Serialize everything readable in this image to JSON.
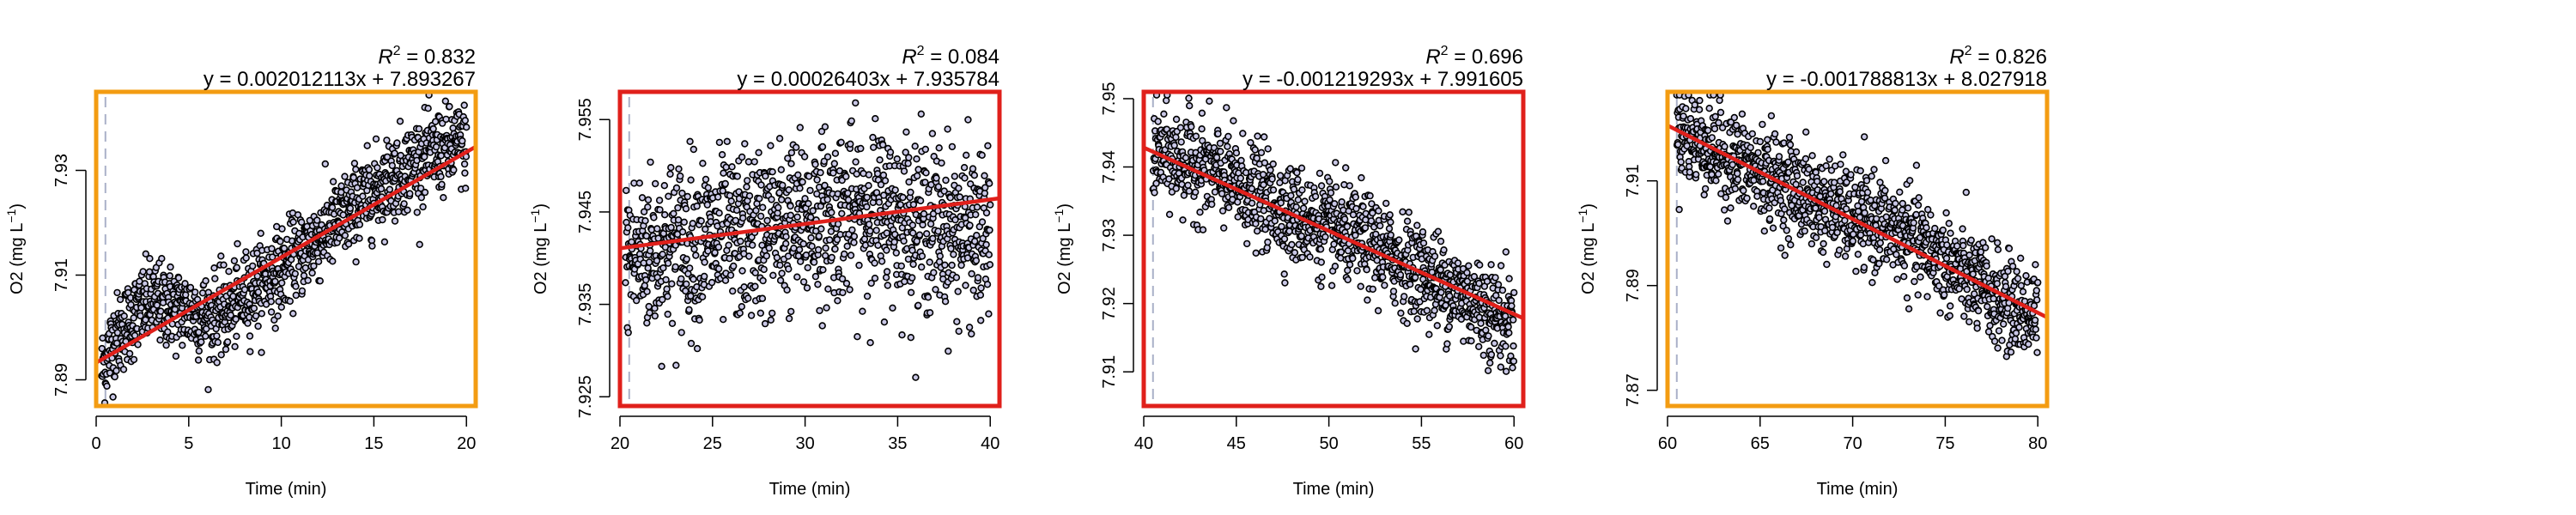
{
  "chart_data": [
    {
      "type": "scatter",
      "title": "",
      "xlabel": "Time (min)",
      "ylabel": "O2 (mg L-1)",
      "xlim": [
        0,
        20.5
      ],
      "ylim": [
        7.885,
        7.945
      ],
      "xticks": [
        "0",
        "5",
        "10",
        "15",
        "20"
      ],
      "xtick_values": [
        0,
        5,
        10,
        15,
        20
      ],
      "yticks": [
        "7.89",
        "7.91",
        "7.93"
      ],
      "ytick_values": [
        7.89,
        7.91,
        7.93
      ],
      "r2_label": "= 0.832",
      "equation": "y = 0.002012113x + 7.893267",
      "slope": 0.002012113,
      "intercept": 7.893267,
      "vline_x": 0.5,
      "frame_color": "#F39C12",
      "points": [
        [
          0.3,
          7.892
        ],
        [
          1.0,
          7.898
        ],
        [
          2.0,
          7.902
        ],
        [
          3.0,
          7.905
        ],
        [
          4.0,
          7.904
        ],
        [
          5.0,
          7.903
        ],
        [
          6.0,
          7.902
        ],
        [
          7.0,
          7.903
        ],
        [
          8.0,
          7.906
        ],
        [
          9.0,
          7.909
        ],
        [
          10.0,
          7.911
        ],
        [
          11.0,
          7.914
        ],
        [
          12.0,
          7.917
        ],
        [
          13.0,
          7.92
        ],
        [
          14.0,
          7.923
        ],
        [
          15.0,
          7.926
        ],
        [
          16.0,
          7.929
        ],
        [
          17.0,
          7.931
        ],
        [
          18.0,
          7.933
        ],
        [
          19.0,
          7.934
        ],
        [
          20.0,
          7.935
        ]
      ],
      "noise": 0.004
    },
    {
      "type": "scatter",
      "title": "",
      "xlabel": "Time (min)",
      "ylabel": "O2 (mg L-1)",
      "xlim": [
        20,
        40.5
      ],
      "ylim": [
        7.924,
        7.958
      ],
      "xticks": [
        "20",
        "25",
        "30",
        "35",
        "40"
      ],
      "xtick_values": [
        20,
        25,
        30,
        35,
        40
      ],
      "yticks": [
        "7.925",
        "7.935",
        "7.945",
        "7.955"
      ],
      "ytick_values": [
        7.925,
        7.935,
        7.945,
        7.955
      ],
      "r2_label": "= 0.084",
      "equation": "y = 0.00026403x + 7.935784",
      "slope": 0.00026403,
      "intercept": 7.935784,
      "vline_x": 20.5,
      "frame_color": "#E0201B",
      "points": [
        [
          20.3,
          7.94
        ],
        [
          22.0,
          7.941
        ],
        [
          24.0,
          7.942
        ],
        [
          26.0,
          7.942
        ],
        [
          28.0,
          7.943
        ],
        [
          30.0,
          7.944
        ],
        [
          32.0,
          7.945
        ],
        [
          34.0,
          7.945
        ],
        [
          36.0,
          7.944
        ],
        [
          38.0,
          7.943
        ],
        [
          40.0,
          7.942
        ]
      ],
      "noise": 0.0045
    },
    {
      "type": "scatter",
      "title": "",
      "xlabel": "Time (min)",
      "ylabel": "O2 (mg L-1)",
      "xlim": [
        40,
        60.5
      ],
      "ylim": [
        7.905,
        7.951
      ],
      "xticks": [
        "40",
        "45",
        "50",
        "55",
        "60"
      ],
      "xtick_values": [
        40,
        45,
        50,
        55,
        60
      ],
      "yticks": [
        "7.91",
        "7.92",
        "7.93",
        "7.94",
        "7.95"
      ],
      "ytick_values": [
        7.91,
        7.92,
        7.93,
        7.94,
        7.95
      ],
      "r2_label": "= 0.696",
      "equation": "y = -0.001219293x + 7.991605",
      "slope": -0.001219293,
      "intercept": 7.991605,
      "vline_x": 40.5,
      "frame_color": "#E0201B",
      "points": [
        [
          40.5,
          7.942
        ],
        [
          42.0,
          7.941
        ],
        [
          44.0,
          7.939
        ],
        [
          46.0,
          7.936
        ],
        [
          48.0,
          7.933
        ],
        [
          50.0,
          7.931
        ],
        [
          52.0,
          7.929
        ],
        [
          54.0,
          7.926
        ],
        [
          56.0,
          7.923
        ],
        [
          58.0,
          7.92
        ],
        [
          60.0,
          7.917
        ]
      ],
      "noise": 0.0035
    },
    {
      "type": "scatter",
      "title": "",
      "xlabel": "Time (min)",
      "ylabel": "O2 (mg L-1)",
      "xlim": [
        60,
        80.5
      ],
      "ylim": [
        7.867,
        7.927
      ],
      "xticks": [
        "60",
        "65",
        "70",
        "75",
        "80"
      ],
      "xtick_values": [
        60,
        65,
        70,
        75,
        80
      ],
      "yticks": [
        "7.87",
        "7.89",
        "7.91"
      ],
      "ytick_values": [
        7.87,
        7.89,
        7.91
      ],
      "r2_label": "= 0.826",
      "equation": "y = -0.001788813x + 8.027918",
      "slope": -0.001788813,
      "intercept": 8.027918,
      "vline_x": 60.5,
      "frame_color": "#F39C12",
      "points": [
        [
          60.5,
          7.92
        ],
        [
          62.0,
          7.917
        ],
        [
          64.0,
          7.913
        ],
        [
          66.0,
          7.91
        ],
        [
          68.0,
          7.906
        ],
        [
          70.0,
          7.903
        ],
        [
          72.0,
          7.901
        ],
        [
          74.0,
          7.897
        ],
        [
          76.0,
          7.892
        ],
        [
          78.0,
          7.887
        ],
        [
          80.0,
          7.884
        ]
      ],
      "noise": 0.0045
    }
  ],
  "colors": {
    "point_fill": "#C9C7E6",
    "point_stroke": "#000000",
    "fit_line": "#E0201B",
    "vline": "#AAB0C8"
  }
}
